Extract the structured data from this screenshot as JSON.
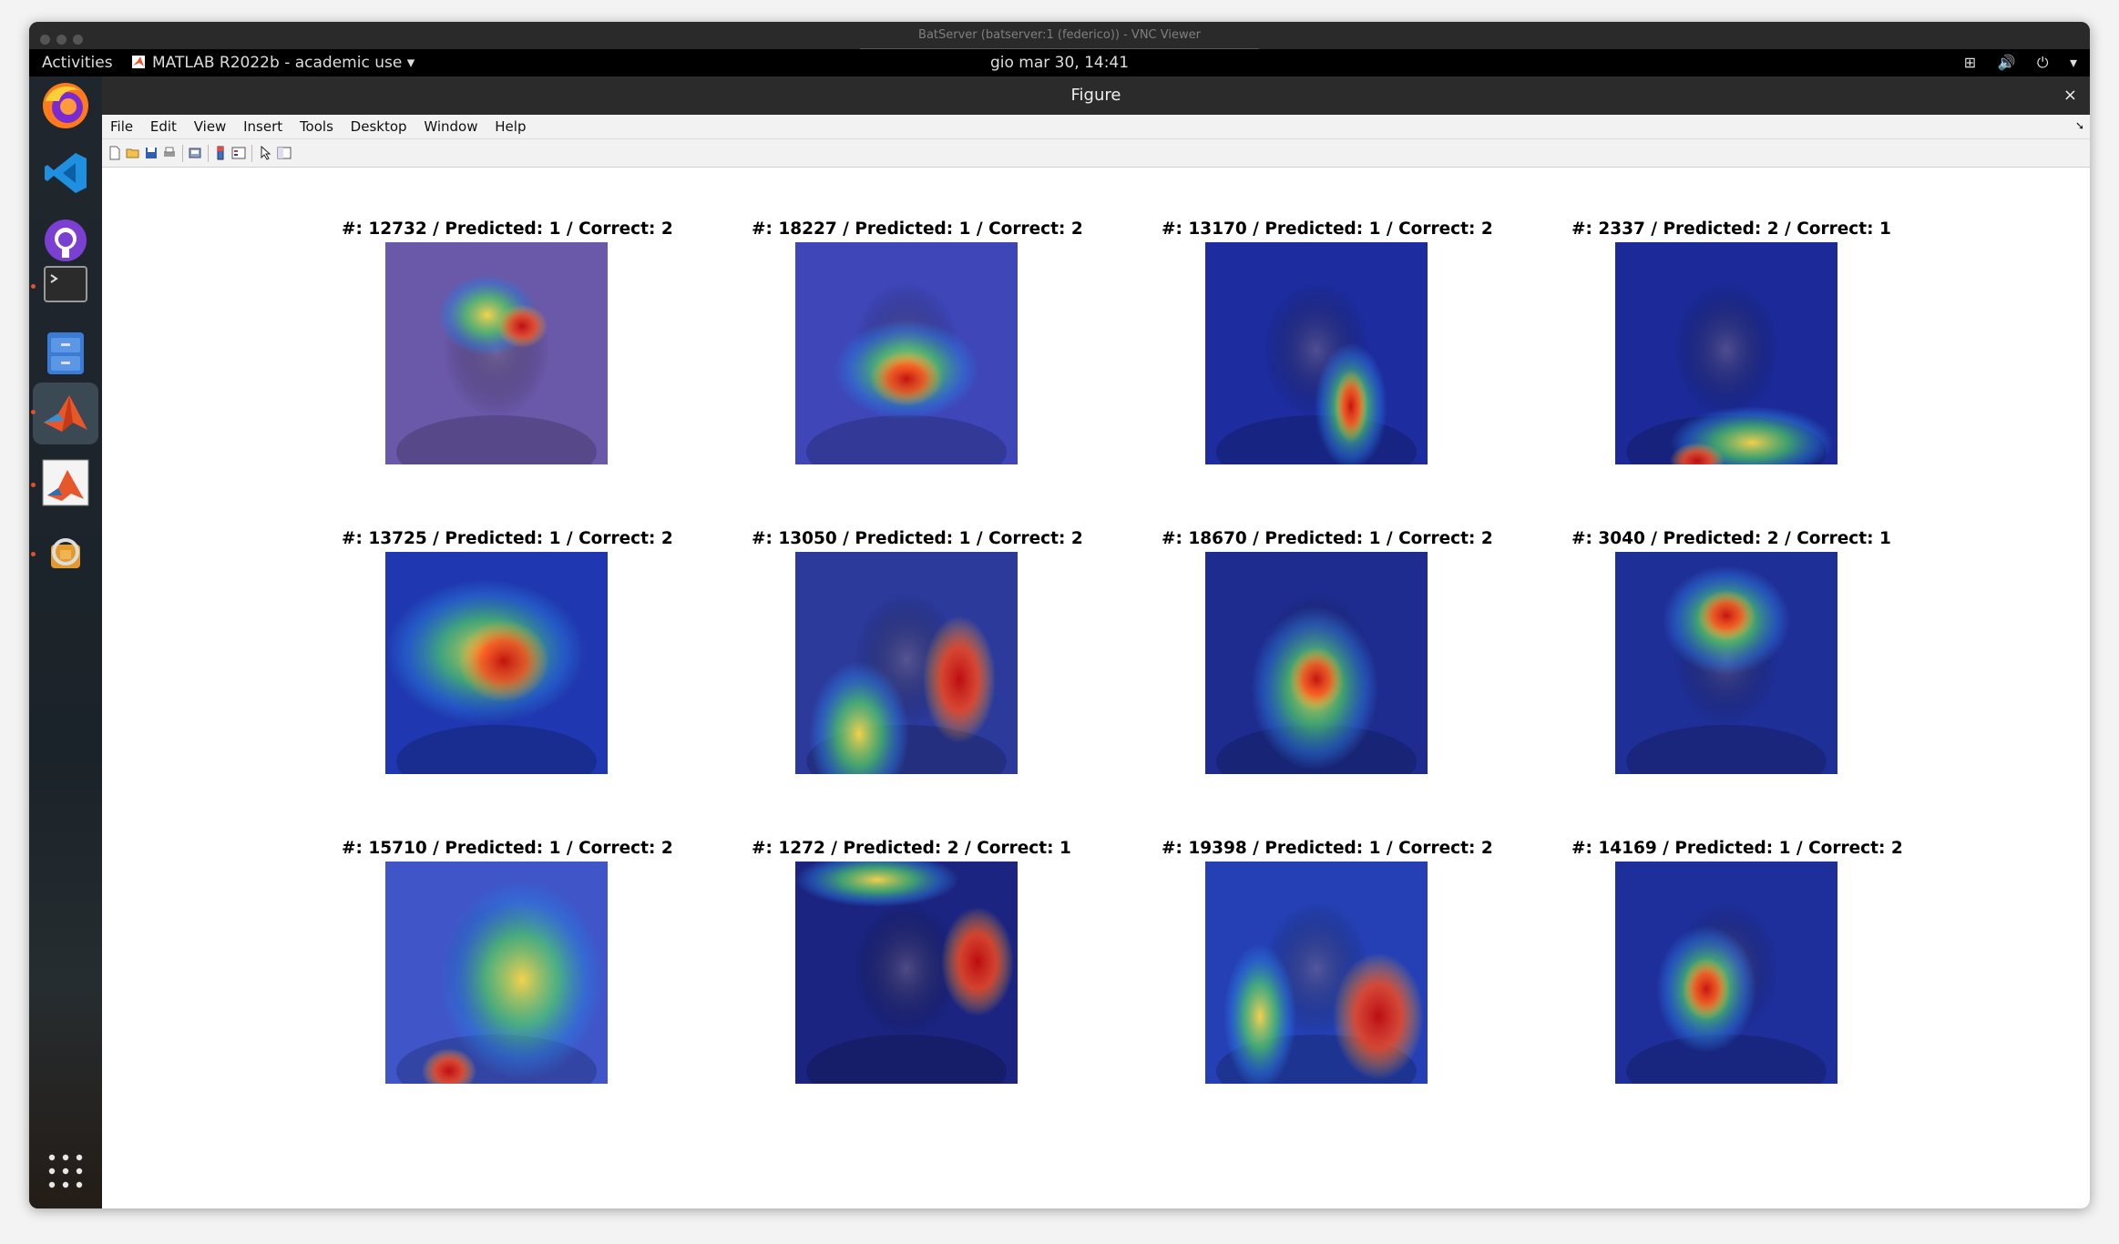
{
  "vnc": {
    "title": "BatServer (batserver:1 (federico)) - VNC Viewer"
  },
  "topbar": {
    "activities": "Activities",
    "app_name": "MATLAB R2022b - academic use",
    "clock": "gio mar 30, 14:41",
    "tray_icons": [
      "network-icon",
      "volume-icon",
      "power-icon",
      "chevron-down-icon"
    ]
  },
  "dock": {
    "items": [
      "firefox",
      "vscode",
      "github-desktop",
      "terminal",
      "file-manager",
      "matlab",
      "matlab-figure",
      "software-updater",
      "app-grid"
    ]
  },
  "figure": {
    "title": "Figure",
    "close": "×",
    "menu": [
      "File",
      "Edit",
      "View",
      "Insert",
      "Tools",
      "Desktop",
      "Window",
      "Help"
    ],
    "toolbar": [
      "new-figure-icon",
      "open-icon",
      "save-icon",
      "print-icon",
      "print-preview-icon",
      "insert-colorbar-icon",
      "insert-legend-icon",
      "edit-plot-icon",
      "property-inspector-icon"
    ],
    "panels": [
      {
        "label": "#: 12732 / Predicted: 1 / Correct: 2",
        "bg": "#6a58a8"
      },
      {
        "label": "#: 18227 / Predicted: 1 / Correct: 2",
        "bg": "#3e46b8"
      },
      {
        "label": "#: 13170 / Predicted: 1 / Correct: 2",
        "bg": "#1d2c9e"
      },
      {
        "label": "#: 2337 / Predicted: 2 / Correct: 1",
        "bg": "#1b2a98"
      },
      {
        "label": "#: 13725 / Predicted: 1 / Correct: 2",
        "bg": "#1f37b0"
      },
      {
        "label": "#: 13050 / Predicted: 1 / Correct: 2",
        "bg": "#2c3a9c"
      },
      {
        "label": "#: 18670 / Predicted: 1 / Correct: 2",
        "bg": "#1e2c8f"
      },
      {
        "label": "#: 3040 / Predicted: 2 / Correct: 1",
        "bg": "#1f2f98"
      },
      {
        "label": "#: 15710 / Predicted: 1 / Correct: 2",
        "bg": "#3f55c8"
      },
      {
        "label": "#: 1272 / Predicted: 2 / Correct: 1",
        "bg": "#1b2480"
      },
      {
        "label": "#: 19398 / Predicted: 1 / Correct: 2",
        "bg": "#2440b4"
      },
      {
        "label": "#: 14169 / Predicted: 1 / Correct: 2",
        "bg": "#1e2f9c"
      }
    ]
  }
}
